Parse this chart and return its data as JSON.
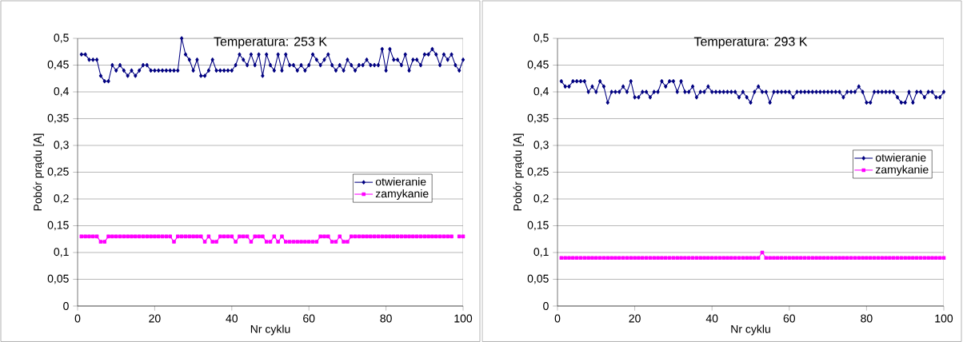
{
  "chart_data": [
    {
      "type": "line",
      "title": "Temperatura: 253 K",
      "xlabel": "Nr cyklu",
      "ylabel": "Pobór prądu [A]",
      "xlim": [
        0,
        100
      ],
      "ylim": [
        0,
        0.5
      ],
      "xticks": [
        0,
        20,
        40,
        60,
        80,
        100
      ],
      "yticks": [
        {
          "value": 0,
          "label": "0"
        },
        {
          "value": 0.05,
          "label": "0,05"
        },
        {
          "value": 0.1,
          "label": "0,1"
        },
        {
          "value": 0.15,
          "label": "0,15"
        },
        {
          "value": 0.2,
          "label": "0,2"
        },
        {
          "value": 0.25,
          "label": "0,25"
        },
        {
          "value": 0.3,
          "label": "0,3"
        },
        {
          "value": 0.35,
          "label": "0,35"
        },
        {
          "value": 0.4,
          "label": "0,4"
        },
        {
          "value": 0.45,
          "label": "0,45"
        },
        {
          "value": 0.5,
          "label": "0,5"
        }
      ],
      "grid": "y",
      "legend": "right",
      "x": [
        1,
        2,
        3,
        4,
        5,
        6,
        7,
        8,
        9,
        10,
        11,
        12,
        13,
        14,
        15,
        16,
        17,
        18,
        19,
        20,
        21,
        22,
        23,
        24,
        25,
        26,
        27,
        28,
        29,
        30,
        31,
        32,
        33,
        34,
        35,
        36,
        37,
        38,
        39,
        40,
        41,
        42,
        43,
        44,
        45,
        46,
        47,
        48,
        49,
        50,
        51,
        52,
        53,
        54,
        55,
        56,
        57,
        58,
        59,
        60,
        61,
        62,
        63,
        64,
        65,
        66,
        67,
        68,
        69,
        70,
        71,
        72,
        73,
        74,
        75,
        76,
        77,
        78,
        79,
        80,
        81,
        82,
        83,
        84,
        85,
        86,
        87,
        88,
        89,
        90,
        91,
        92,
        93,
        94,
        95,
        96,
        97,
        98,
        99,
        100
      ],
      "series": [
        {
          "name": "otwieranie",
          "color": "#000080",
          "marker": "diamond",
          "values": [
            0.47,
            0.47,
            0.46,
            0.46,
            0.46,
            0.43,
            0.42,
            0.42,
            0.45,
            0.44,
            0.45,
            0.44,
            0.43,
            0.44,
            0.43,
            0.44,
            0.45,
            0.45,
            0.44,
            0.44,
            0.44,
            0.44,
            0.44,
            0.44,
            0.44,
            0.44,
            0.5,
            0.47,
            0.46,
            0.44,
            0.46,
            0.43,
            0.43,
            0.44,
            0.46,
            0.44,
            0.44,
            0.44,
            0.44,
            0.44,
            0.45,
            0.47,
            0.46,
            0.45,
            0.47,
            0.45,
            0.47,
            0.43,
            0.47,
            0.45,
            0.44,
            0.47,
            0.44,
            0.47,
            0.45,
            0.45,
            0.44,
            0.45,
            0.44,
            0.45,
            0.47,
            0.46,
            0.45,
            0.46,
            0.47,
            0.45,
            0.44,
            0.45,
            0.44,
            0.46,
            0.45,
            0.44,
            0.45,
            0.45,
            0.46,
            0.45,
            0.45,
            0.45,
            0.48,
            0.44,
            0.48,
            0.46,
            0.46,
            0.45,
            0.47,
            0.44,
            0.46,
            0.46,
            0.45,
            0.47,
            0.47,
            0.48,
            0.47,
            0.45,
            0.47,
            0.46,
            0.47,
            0.45,
            0.44,
            0.46
          ]
        },
        {
          "name": "zamykanie",
          "color": "#ff00ff",
          "marker": "square",
          "values": [
            0.13,
            0.13,
            0.13,
            0.13,
            0.13,
            0.12,
            0.12,
            0.13,
            0.13,
            0.13,
            0.13,
            0.13,
            0.13,
            0.13,
            0.13,
            0.13,
            0.13,
            0.13,
            0.13,
            0.13,
            0.13,
            0.13,
            0.13,
            0.13,
            0.12,
            0.13,
            0.13,
            0.13,
            0.13,
            0.13,
            0.13,
            0.13,
            0.12,
            0.13,
            0.12,
            0.12,
            0.13,
            0.13,
            0.13,
            0.13,
            0.12,
            0.13,
            0.13,
            0.13,
            0.12,
            0.13,
            0.13,
            0.13,
            0.12,
            0.12,
            0.13,
            0.12,
            0.13,
            0.12,
            0.12,
            0.12,
            0.12,
            0.12,
            0.12,
            0.12,
            0.12,
            0.12,
            0.13,
            0.13,
            0.13,
            0.12,
            0.12,
            0.13,
            0.12,
            0.12,
            0.13,
            0.13,
            0.13,
            0.13,
            0.13,
            0.13,
            0.13,
            0.13,
            0.13,
            0.13,
            0.13,
            0.13,
            0.13,
            0.13,
            0.13,
            0.13,
            0.13,
            0.13,
            0.13,
            0.13,
            0.13,
            0.13,
            0.13,
            0.13,
            0.13,
            0.13,
            0.13,
            null,
            0.13,
            0.13
          ]
        }
      ]
    },
    {
      "type": "line",
      "title": "Temperatura: 293 K",
      "xlabel": "Nr cyklu",
      "ylabel": "Pobór prądu [A]",
      "xlim": [
        0,
        100
      ],
      "ylim": [
        0,
        0.5
      ],
      "xticks": [
        0,
        20,
        40,
        60,
        80,
        100
      ],
      "yticks": [
        {
          "value": 0,
          "label": "0"
        },
        {
          "value": 0.05,
          "label": "0,05"
        },
        {
          "value": 0.1,
          "label": "0,1"
        },
        {
          "value": 0.15,
          "label": "0,15"
        },
        {
          "value": 0.2,
          "label": "0,2"
        },
        {
          "value": 0.25,
          "label": "0,25"
        },
        {
          "value": 0.3,
          "label": "0,3"
        },
        {
          "value": 0.35,
          "label": "0,35"
        },
        {
          "value": 0.4,
          "label": "0,4"
        },
        {
          "value": 0.45,
          "label": "0,45"
        },
        {
          "value": 0.5,
          "label": "0,5"
        }
      ],
      "grid": "y",
      "legend": "right",
      "x": [
        1,
        2,
        3,
        4,
        5,
        6,
        7,
        8,
        9,
        10,
        11,
        12,
        13,
        14,
        15,
        16,
        17,
        18,
        19,
        20,
        21,
        22,
        23,
        24,
        25,
        26,
        27,
        28,
        29,
        30,
        31,
        32,
        33,
        34,
        35,
        36,
        37,
        38,
        39,
        40,
        41,
        42,
        43,
        44,
        45,
        46,
        47,
        48,
        49,
        50,
        51,
        52,
        53,
        54,
        55,
        56,
        57,
        58,
        59,
        60,
        61,
        62,
        63,
        64,
        65,
        66,
        67,
        68,
        69,
        70,
        71,
        72,
        73,
        74,
        75,
        76,
        77,
        78,
        79,
        80,
        81,
        82,
        83,
        84,
        85,
        86,
        87,
        88,
        89,
        90,
        91,
        92,
        93,
        94,
        95,
        96,
        97,
        98,
        99,
        100
      ],
      "series": [
        {
          "name": "otwieranie",
          "color": "#000080",
          "marker": "diamond",
          "values": [
            0.42,
            0.41,
            0.41,
            0.42,
            0.42,
            0.42,
            0.42,
            0.4,
            0.41,
            0.4,
            0.42,
            0.41,
            0.38,
            0.4,
            0.4,
            0.4,
            0.41,
            0.4,
            0.42,
            0.39,
            0.39,
            0.4,
            0.4,
            0.39,
            0.4,
            0.4,
            0.42,
            0.41,
            0.42,
            0.42,
            0.4,
            0.42,
            0.4,
            0.4,
            0.41,
            0.39,
            0.4,
            0.4,
            0.41,
            0.4,
            0.4,
            0.4,
            0.4,
            0.4,
            0.4,
            0.4,
            0.39,
            0.4,
            0.39,
            0.38,
            0.4,
            0.41,
            0.4,
            0.4,
            0.38,
            0.4,
            0.4,
            0.4,
            0.4,
            0.4,
            0.39,
            0.4,
            0.4,
            0.4,
            0.4,
            0.4,
            0.4,
            0.4,
            0.4,
            0.4,
            0.4,
            0.4,
            0.4,
            0.39,
            0.4,
            0.4,
            0.4,
            0.41,
            0.4,
            0.38,
            0.38,
            0.4,
            0.4,
            0.4,
            0.4,
            0.4,
            0.4,
            0.39,
            0.38,
            0.38,
            0.4,
            0.38,
            0.4,
            0.4,
            0.39,
            0.4,
            0.4,
            0.39,
            0.39,
            0.4
          ]
        },
        {
          "name": "zamykanie",
          "color": "#ff00ff",
          "marker": "square",
          "values": [
            0.09,
            0.09,
            0.09,
            0.09,
            0.09,
            0.09,
            0.09,
            0.09,
            0.09,
            0.09,
            0.09,
            0.09,
            0.09,
            0.09,
            0.09,
            0.09,
            0.09,
            0.09,
            0.09,
            0.09,
            0.09,
            0.09,
            0.09,
            0.09,
            0.09,
            0.09,
            0.09,
            0.09,
            0.09,
            0.09,
            0.09,
            0.09,
            0.09,
            0.09,
            0.09,
            0.09,
            0.09,
            0.09,
            0.09,
            0.09,
            0.09,
            0.09,
            0.09,
            0.09,
            0.09,
            0.09,
            0.09,
            0.09,
            0.09,
            0.09,
            0.09,
            0.09,
            0.1,
            0.09,
            0.09,
            0.09,
            0.09,
            0.09,
            0.09,
            0.09,
            0.09,
            0.09,
            0.09,
            0.09,
            0.09,
            0.09,
            0.09,
            0.09,
            0.09,
            0.09,
            0.09,
            0.09,
            0.09,
            0.09,
            0.09,
            0.09,
            0.09,
            0.09,
            0.09,
            0.09,
            0.09,
            0.09,
            0.09,
            0.09,
            0.09,
            0.09,
            0.09,
            0.09,
            0.09,
            0.09,
            0.09,
            0.09,
            0.09,
            0.09,
            0.09,
            0.09,
            0.09,
            0.09,
            0.09,
            0.09
          ]
        }
      ]
    }
  ]
}
